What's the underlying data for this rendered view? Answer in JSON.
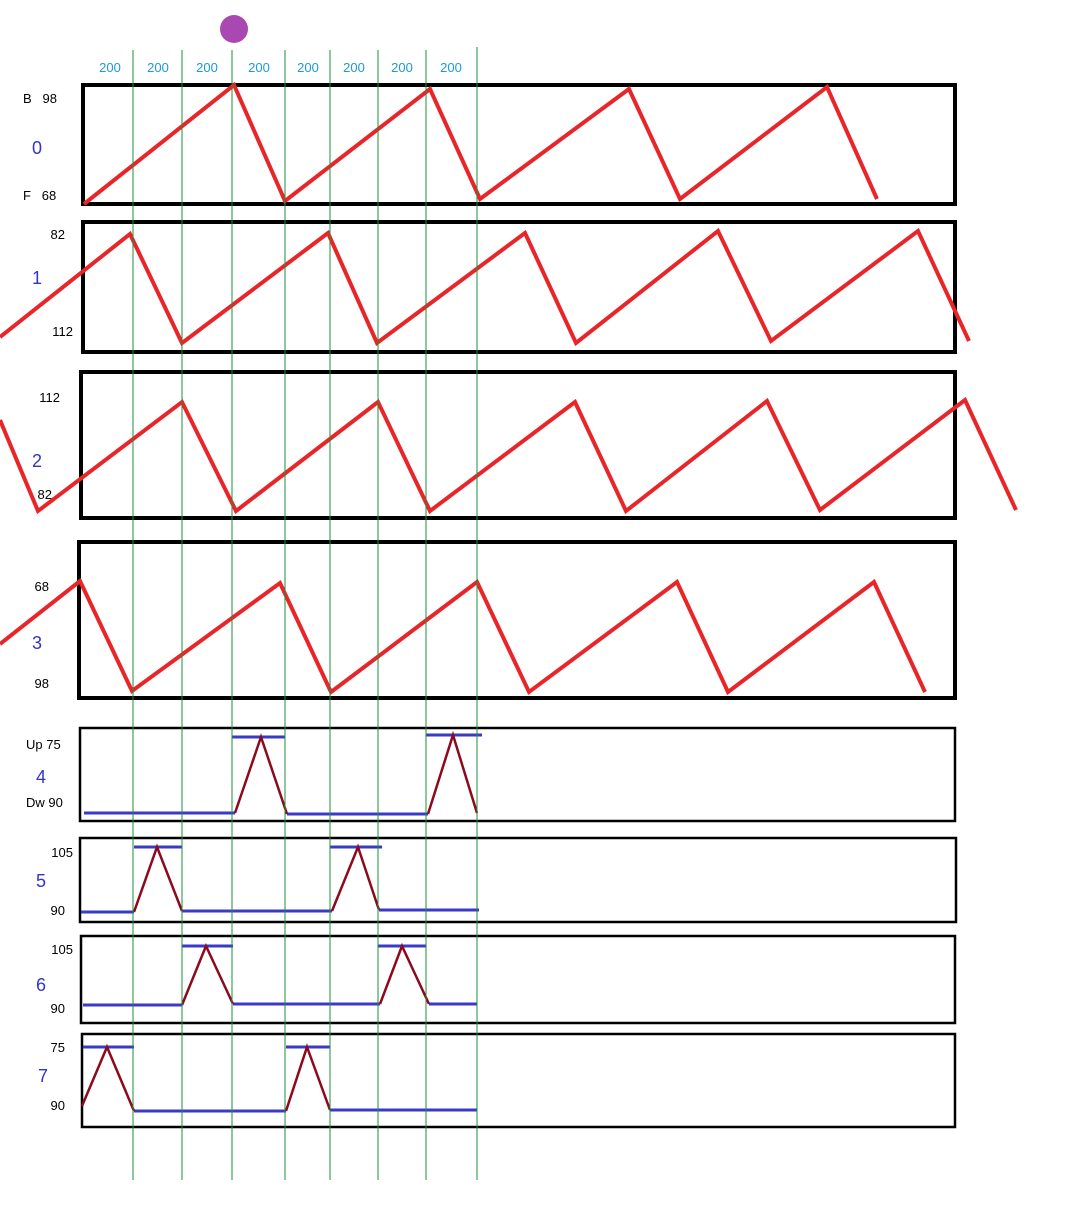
{
  "colors": {
    "frame": "#000000",
    "servo_wave": "#e8262a",
    "pulse_flat": "#3a3ac8",
    "pulse_peak": "#8b0a1e",
    "sync_line": "#1f8f3a",
    "duration_text": "#1a9ad6",
    "index_text": "#3333cc",
    "marker": "#a848b0"
  },
  "marker": {
    "name": "playhead-dot"
  },
  "durations": [
    "200",
    "200",
    "200",
    "200",
    "200",
    "200",
    "200",
    "200"
  ],
  "panels": [
    {
      "index": "0",
      "top_label": "B   98",
      "bottom_label": "F   68"
    },
    {
      "index": "1",
      "top_label": "82",
      "bottom_label": "112"
    },
    {
      "index": "2",
      "top_label": "112",
      "bottom_label": "82"
    },
    {
      "index": "3",
      "top_label": "68",
      "bottom_label": "98"
    },
    {
      "index": "4",
      "top_label": "Up 75",
      "bottom_label": "Dw 90"
    },
    {
      "index": "5",
      "top_label": "105",
      "bottom_label": "90"
    },
    {
      "index": "6",
      "top_label": "105",
      "bottom_label": "90"
    },
    {
      "index": "7",
      "top_label": "75",
      "bottom_label": "90"
    }
  ]
}
